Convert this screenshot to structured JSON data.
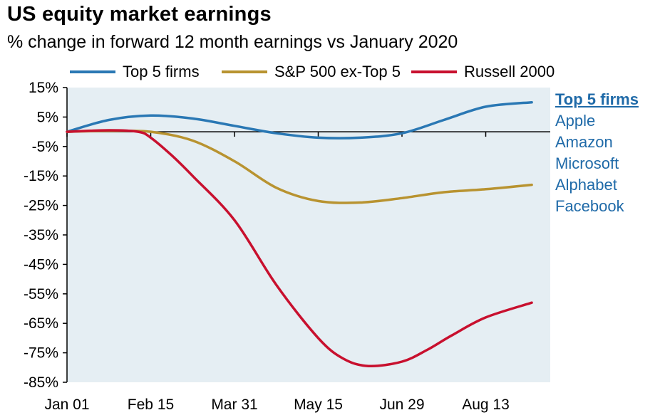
{
  "chart_data": {
    "type": "line",
    "title": "US equity market earnings",
    "subtitle": "% change in forward 12 month earnings vs January 2020",
    "x_labels": [
      "Jan 01",
      "Feb 15",
      "Mar 31",
      "May 15",
      "Jun 29",
      "Aug 13"
    ],
    "x_label_positions": [
      0,
      1,
      2,
      3,
      4,
      5
    ],
    "x_range": [
      0,
      5.85
    ],
    "y_ticks": [
      "15%",
      "5%",
      "-5%",
      "-15%",
      "-25%",
      "-35%",
      "-45%",
      "-55%",
      "-65%",
      "-75%",
      "-85%"
    ],
    "y_tick_values": [
      15,
      5,
      -5,
      -15,
      -25,
      -35,
      -45,
      -55,
      -65,
      -75,
      -85
    ],
    "ylim": [
      -85,
      15
    ],
    "zero_line": 0,
    "legend_position": "top",
    "series": [
      {
        "name": "Top 5 firms",
        "color": "#2a78b4",
        "x": [
          0,
          0.5,
          1,
          1.5,
          2,
          2.5,
          3,
          3.5,
          4,
          4.5,
          5,
          5.55
        ],
        "y": [
          0,
          4,
          5.5,
          4.5,
          2,
          -0.5,
          -2,
          -2,
          -0.5,
          4,
          8.5,
          10
        ]
      },
      {
        "name": "S&P 500 ex-Top 5",
        "color": "#b89330",
        "x": [
          0,
          0.5,
          1,
          1.5,
          2,
          2.5,
          3,
          3.5,
          4,
          4.5,
          5,
          5.55
        ],
        "y": [
          0,
          0.3,
          0,
          -3,
          -10,
          -19,
          -23.5,
          -24,
          -22.5,
          -20.5,
          -19.5,
          -18
        ]
      },
      {
        "name": "Russell 2000",
        "color": "#c8102e",
        "x": [
          0,
          0.5,
          0.85,
          1,
          1.25,
          1.5,
          2,
          2.5,
          3,
          3.3,
          3.6,
          4,
          4.3,
          4.6,
          5,
          5.55
        ],
        "y": [
          0,
          0.5,
          0,
          -2,
          -8,
          -15,
          -30,
          -52,
          -70,
          -77,
          -79.5,
          -78,
          -74,
          -69,
          -63,
          -58
        ]
      }
    ],
    "side_panel": {
      "title": "Top 5 firms",
      "items": [
        "Apple",
        "Amazon",
        "Microsoft",
        "Alphabet",
        "Facebook"
      ]
    }
  }
}
